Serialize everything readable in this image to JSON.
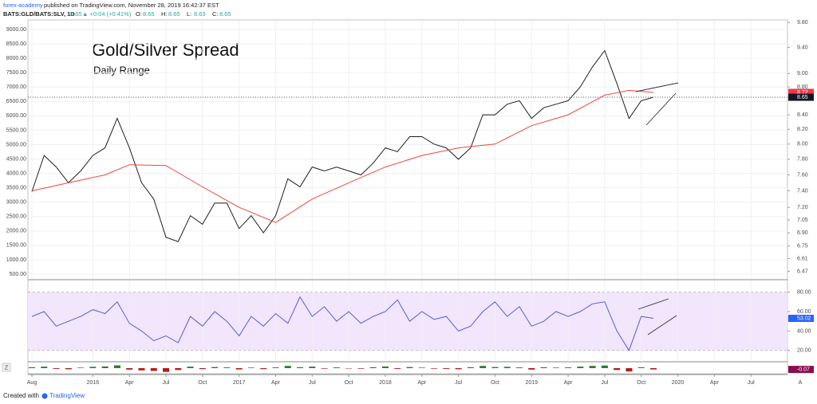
{
  "header": {
    "publisher": "forex-academy",
    "published": "published on TradingView.com, November 28, 2019 16:42:37 EST",
    "symbol": "BATS:GLD/BATS:SLV, 1D",
    "last": "8.65",
    "change": "▲ +0.04 (+0.41%)",
    "ohlc": [
      {
        "label": "O:",
        "value": "8.65"
      },
      {
        "label": "H:",
        "value": "8.65"
      },
      {
        "label": "L:",
        "value": "8.63"
      },
      {
        "label": "C:",
        "value": "8.65"
      }
    ]
  },
  "footer": {
    "created": "Created with",
    "brand": "TradingView",
    "left_button": "Z",
    "right_button": "A"
  },
  "chart_data": [
    {
      "type": "line",
      "title": "Gold/Silver Spread",
      "subtitle": "Daily Range",
      "xlim": [
        "2015-08",
        "2020-10"
      ],
      "grid": true,
      "y2log": true,
      "ylim": [
        334,
        9332
      ],
      "yticks": [
        {
          "value": 9000,
          "label": "9000.00"
        },
        {
          "value": 8500,
          "label": "8500.00"
        },
        {
          "value": 8000,
          "label": "8000.00"
        },
        {
          "value": 7500,
          "label": "7500.00"
        },
        {
          "value": 7000,
          "label": "7000.00"
        },
        {
          "value": 6500,
          "label": "6500.00"
        },
        {
          "value": 6000,
          "label": "6000.00"
        },
        {
          "value": 5500,
          "label": "5500.00"
        },
        {
          "value": 5000,
          "label": "5000.00"
        },
        {
          "value": 4500,
          "label": "4500.00"
        },
        {
          "value": 4000,
          "label": "4000.00"
        },
        {
          "value": 3500,
          "label": "3500.00"
        },
        {
          "value": 3000,
          "label": "3000.00"
        },
        {
          "value": 2500,
          "label": "2500.00"
        },
        {
          "value": 2000,
          "label": "2000.00"
        },
        {
          "value": 1500,
          "label": "1500.00"
        },
        {
          "value": 1000,
          "label": "1000.00"
        },
        {
          "value": 500,
          "label": "500.00"
        }
      ],
      "y2lim": [
        6.39,
        9.84
      ],
      "y2ticks": [
        {
          "value": 9.8,
          "label": "9.80"
        },
        {
          "value": 9.4,
          "label": "9.40"
        },
        {
          "value": 9.0,
          "label": "9.00"
        },
        {
          "value": 8.8,
          "label": "8.80"
        },
        {
          "value": 8.4,
          "label": "8.40"
        },
        {
          "value": 8.2,
          "label": "8.20"
        },
        {
          "value": 8.0,
          "label": "8.00"
        },
        {
          "value": 7.8,
          "label": "7.80"
        },
        {
          "value": 7.6,
          "label": "7.60"
        },
        {
          "value": 7.4,
          "label": "7.40"
        },
        {
          "value": 7.2,
          "label": "7.20"
        },
        {
          "value": 7.05,
          "label": "7.05"
        },
        {
          "value": 6.9,
          "label": "6.90"
        },
        {
          "value": 6.75,
          "label": "6.75"
        },
        {
          "value": 6.61,
          "label": "6.61"
        },
        {
          "value": 6.47,
          "label": "6.47"
        }
      ],
      "series": [
        {
          "name": "GLD/SLV",
          "color": "#1e1e1e",
          "axis": "y2",
          "x": [
            "2015-08",
            "2015-09",
            "2015-10",
            "2015-11",
            "2015-12",
            "2016-01",
            "2016-02",
            "2016-03",
            "2016-04",
            "2016-05",
            "2016-06",
            "2016-07",
            "2016-08",
            "2016-09",
            "2016-10",
            "2016-11",
            "2016-12",
            "2017-01",
            "2017-02",
            "2017-03",
            "2017-04",
            "2017-05",
            "2017-06",
            "2017-07",
            "2017-08",
            "2017-09",
            "2017-10",
            "2017-11",
            "2017-12",
            "2018-01",
            "2018-02",
            "2018-03",
            "2018-04",
            "2018-05",
            "2018-06",
            "2018-07",
            "2018-08",
            "2018-09",
            "2018-10",
            "2018-11",
            "2018-12",
            "2019-01",
            "2019-02",
            "2019-03",
            "2019-04",
            "2019-05",
            "2019-06",
            "2019-07",
            "2019-08",
            "2019-09",
            "2019-10",
            "2019-11"
          ],
          "values": [
            7.39,
            7.85,
            7.7,
            7.5,
            7.65,
            7.85,
            7.95,
            8.35,
            7.95,
            7.5,
            7.3,
            6.85,
            6.8,
            7.1,
            7.0,
            7.25,
            7.25,
            6.95,
            7.1,
            6.9,
            7.1,
            7.55,
            7.45,
            7.7,
            7.65,
            7.7,
            7.65,
            7.6,
            7.75,
            7.95,
            7.9,
            8.1,
            8.1,
            8.0,
            7.95,
            7.8,
            7.95,
            8.4,
            8.4,
            8.55,
            8.6,
            8.35,
            8.5,
            8.55,
            8.6,
            8.8,
            9.1,
            9.35,
            8.85,
            8.35,
            8.6,
            8.65
          ]
        },
        {
          "name": "MA",
          "color": "#f0463c",
          "axis": "y2",
          "x": [
            "2015-08",
            "2015-11",
            "2016-02",
            "2016-04",
            "2016-07",
            "2016-10",
            "2017-01",
            "2017-04",
            "2017-07",
            "2017-10",
            "2018-01",
            "2018-04",
            "2018-07",
            "2018-10",
            "2019-01",
            "2019-04",
            "2019-07",
            "2019-09",
            "2019-11"
          ],
          "values": [
            7.4,
            7.5,
            7.6,
            7.73,
            7.72,
            7.45,
            7.2,
            7.02,
            7.3,
            7.5,
            7.7,
            7.85,
            7.95,
            8.0,
            8.25,
            8.4,
            8.68,
            8.75,
            8.72
          ]
        }
      ],
      "last_labels": [
        {
          "value": 8.72,
          "label": "8.72",
          "color": "#f23645"
        },
        {
          "value": 8.65,
          "label": "8.65",
          "color": "#131722"
        }
      ]
    },
    {
      "type": "line",
      "xlim": [
        "2015-08",
        "2020-10"
      ],
      "grid": true,
      "ylim": [
        10,
        92
      ],
      "band": [
        20,
        80
      ],
      "yticks": [
        {
          "value": 80,
          "label": "80.00"
        },
        {
          "value": 60,
          "label": "60.00"
        },
        {
          "value": 40,
          "label": "40.00"
        },
        {
          "value": 20,
          "label": "20.00"
        }
      ],
      "series": [
        {
          "name": "RSI",
          "color": "#5b5bd6",
          "x": [
            "2015-08",
            "2015-09",
            "2015-10",
            "2015-11",
            "2015-12",
            "2016-01",
            "2016-02",
            "2016-03",
            "2016-04",
            "2016-05",
            "2016-06",
            "2016-07",
            "2016-08",
            "2016-09",
            "2016-10",
            "2016-11",
            "2016-12",
            "2017-01",
            "2017-02",
            "2017-03",
            "2017-04",
            "2017-05",
            "2017-06",
            "2017-07",
            "2017-08",
            "2017-09",
            "2017-10",
            "2017-11",
            "2017-12",
            "2018-01",
            "2018-02",
            "2018-03",
            "2018-04",
            "2018-05",
            "2018-06",
            "2018-07",
            "2018-08",
            "2018-09",
            "2018-10",
            "2018-11",
            "2018-12",
            "2019-01",
            "2019-02",
            "2019-03",
            "2019-04",
            "2019-05",
            "2019-06",
            "2019-07",
            "2019-08",
            "2019-09",
            "2019-10",
            "2019-11"
          ],
          "values": [
            55,
            60,
            45,
            50,
            55,
            62,
            58,
            70,
            48,
            40,
            30,
            35,
            28,
            55,
            45,
            60,
            50,
            35,
            55,
            45,
            58,
            48,
            75,
            55,
            65,
            50,
            60,
            48,
            55,
            60,
            72,
            50,
            60,
            52,
            55,
            40,
            45,
            60,
            70,
            55,
            65,
            45,
            50,
            60,
            55,
            60,
            68,
            70,
            40,
            20,
            55,
            53.02
          ]
        }
      ],
      "last_labels": [
        {
          "value": 53.02,
          "label": "53.02",
          "color": "#2962ff"
        }
      ]
    },
    {
      "type": "bar",
      "xlim": [
        "2015-08",
        "2020-10"
      ],
      "ylim": [
        -0.3,
        0.3
      ],
      "xticks": [
        {
          "value": "2015-08",
          "label": "Aug"
        },
        {
          "value": "2016-01",
          "label": "2016"
        },
        {
          "value": "2016-04",
          "label": "Apr"
        },
        {
          "value": "2016-07",
          "label": "Jul"
        },
        {
          "value": "2016-10",
          "label": "Oct"
        },
        {
          "value": "2017-01",
          "label": "2017"
        },
        {
          "value": "2017-04",
          "label": "Apr"
        },
        {
          "value": "2017-07",
          "label": "Jul"
        },
        {
          "value": "2017-10",
          "label": "Oct"
        },
        {
          "value": "2018-01",
          "label": "2018"
        },
        {
          "value": "2018-04",
          "label": "Apr"
        },
        {
          "value": "2018-07",
          "label": "Jul"
        },
        {
          "value": "2018-10",
          "label": "Oct"
        },
        {
          "value": "2019-01",
          "label": "2019"
        },
        {
          "value": "2019-04",
          "label": "Apr"
        },
        {
          "value": "2019-07",
          "label": "Jul"
        },
        {
          "value": "2019-10",
          "label": "Oct"
        },
        {
          "value": "2020-01",
          "label": "2020"
        },
        {
          "value": "2020-04",
          "label": "Apr"
        },
        {
          "value": "2020-07",
          "label": "Jul"
        }
      ],
      "series": [
        {
          "name": "MACD",
          "pos_color": "#2e7d32",
          "neg_color": "#b71c1c",
          "x": [
            "2015-08",
            "2015-09",
            "2015-10",
            "2015-11",
            "2015-12",
            "2016-01",
            "2016-02",
            "2016-03",
            "2016-04",
            "2016-05",
            "2016-06",
            "2016-07",
            "2016-08",
            "2016-09",
            "2016-10",
            "2016-11",
            "2016-12",
            "2017-01",
            "2017-02",
            "2017-03",
            "2017-04",
            "2017-05",
            "2017-06",
            "2017-07",
            "2017-08",
            "2017-09",
            "2017-10",
            "2017-11",
            "2017-12",
            "2018-01",
            "2018-02",
            "2018-03",
            "2018-04",
            "2018-05",
            "2018-06",
            "2018-07",
            "2018-08",
            "2018-09",
            "2018-10",
            "2018-11",
            "2018-12",
            "2019-01",
            "2019-02",
            "2019-03",
            "2019-04",
            "2019-05",
            "2019-06",
            "2019-07",
            "2019-08",
            "2019-09",
            "2019-10",
            "2019-11"
          ],
          "values": [
            0.05,
            0.08,
            -0.04,
            -0.06,
            0.03,
            0.07,
            0.09,
            0.15,
            -0.08,
            -0.12,
            -0.15,
            -0.2,
            -0.1,
            0.08,
            -0.05,
            0.06,
            0.04,
            -0.07,
            0.03,
            -0.05,
            0.04,
            0.12,
            0.05,
            0.08,
            -0.03,
            0.04,
            -0.02,
            -0.03,
            0.05,
            0.09,
            -0.04,
            0.06,
            0.03,
            -0.03,
            -0.04,
            -0.06,
            0.05,
            0.12,
            0.06,
            0.07,
            0.04,
            -0.08,
            0.05,
            0.03,
            0.04,
            0.08,
            0.12,
            0.14,
            -0.1,
            -0.18,
            0.05,
            -0.07
          ]
        }
      ],
      "last_labels": [
        {
          "value": -0.07,
          "label": "-0.07",
          "color": "#880e4f"
        }
      ]
    }
  ]
}
